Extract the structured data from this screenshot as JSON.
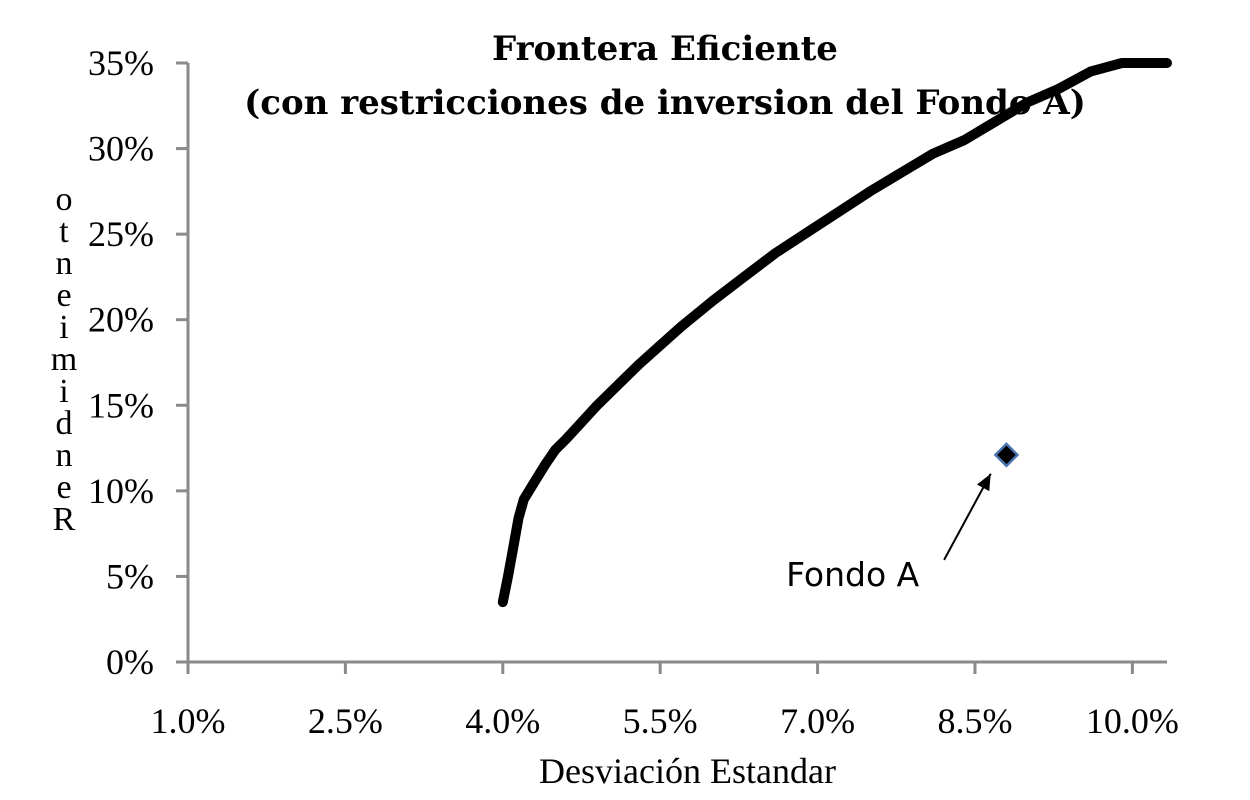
{
  "chart_data": {
    "type": "scatter",
    "title": [
      "Frontera Eficiente",
      "(con restricciones de inversion del Fondo A)"
    ],
    "xlabel": "Desviación Estandar",
    "ylabel": "Rendimiento",
    "xlim": [
      0.01,
      0.1033
    ],
    "ylim": [
      0,
      0.35
    ],
    "x_ticks": [
      0.01,
      0.025,
      0.04,
      0.055,
      0.07,
      0.085,
      0.1
    ],
    "x_tick_labels": [
      "1.0%",
      "2.5%",
      "4.0%",
      "5.5%",
      "7.0%",
      "8.5%",
      "10.0%"
    ],
    "y_ticks": [
      0,
      0.05,
      0.1,
      0.15,
      0.2,
      0.25,
      0.3,
      0.35
    ],
    "y_tick_labels": [
      "0%",
      "5%",
      "10%",
      "15%",
      "20%",
      "25%",
      "30%",
      "35%"
    ],
    "grid": false,
    "legend": "none",
    "series": [
      {
        "kind": "line",
        "color": "#000000",
        "x": [
          0.04,
          0.0405,
          0.041,
          0.0415,
          0.042,
          0.043,
          0.044,
          0.045,
          0.046,
          0.0475,
          0.049,
          0.051,
          0.053,
          0.055,
          0.057,
          0.06,
          0.063,
          0.066,
          0.069,
          0.072,
          0.075,
          0.078,
          0.081,
          0.084,
          0.087,
          0.09,
          0.093,
          0.096,
          0.099,
          0.101,
          0.1033
        ],
        "y": [
          0.035,
          0.05,
          0.067,
          0.084,
          0.095,
          0.105,
          0.115,
          0.124,
          0.13,
          0.14,
          0.15,
          0.162,
          0.174,
          0.185,
          0.196,
          0.211,
          0.225,
          0.239,
          0.251,
          0.263,
          0.275,
          0.286,
          0.297,
          0.305,
          0.316,
          0.327,
          0.335,
          0.345,
          0.355,
          0.36,
          0.368
        ]
      },
      {
        "kind": "point",
        "name": "Fondo A",
        "marker": "diamond",
        "color": "#000000",
        "edge_color": "#4a74b0",
        "x": [
          0.088
        ],
        "y": [
          0.121
        ]
      }
    ],
    "annotations": [
      {
        "text": "Fondo A",
        "x": 0.067,
        "y": 0.055,
        "arrow_to": [
          0.0865,
          0.11
        ]
      }
    ]
  }
}
